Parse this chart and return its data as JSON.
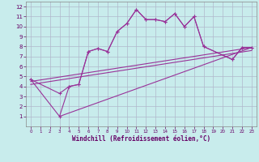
{
  "xlabel": "Windchill (Refroidissement éolien,°C)",
  "xlim": [
    -0.5,
    23.5
  ],
  "ylim": [
    0,
    12.5
  ],
  "xticks": [
    0,
    1,
    2,
    3,
    4,
    5,
    6,
    7,
    8,
    9,
    10,
    11,
    12,
    13,
    14,
    15,
    16,
    17,
    18,
    19,
    20,
    21,
    22,
    23
  ],
  "yticks": [
    1,
    2,
    3,
    4,
    5,
    6,
    7,
    8,
    9,
    10,
    11,
    12
  ],
  "bg_color": "#c8ecec",
  "grid_color": "#aaaacc",
  "line_color": "#993399",
  "zigzag_x": [
    0,
    3,
    4,
    5,
    6,
    7,
    8,
    9,
    10,
    11,
    12,
    13,
    14,
    15,
    16,
    17,
    18,
    21,
    22,
    23
  ],
  "zigzag_y": [
    4.7,
    3.3,
    4.0,
    4.2,
    7.5,
    7.8,
    7.5,
    9.5,
    10.3,
    11.7,
    10.7,
    10.7,
    10.5,
    11.3,
    10.0,
    11.0,
    8.0,
    6.7,
    7.9,
    7.9
  ],
  "upper_x": [
    0,
    3,
    4,
    5,
    6,
    7,
    8,
    9,
    10,
    11,
    12,
    13,
    14,
    15,
    16,
    17,
    18,
    21,
    22,
    23
  ],
  "upper_y": [
    4.7,
    1.0,
    4.0,
    4.2,
    7.5,
    7.8,
    7.5,
    9.5,
    10.3,
    11.7,
    10.7,
    10.7,
    10.5,
    11.3,
    10.0,
    11.0,
    8.0,
    6.7,
    7.9,
    7.9
  ],
  "line1_x": [
    0,
    23
  ],
  "line1_y": [
    4.5,
    7.9
  ],
  "line2_x": [
    0,
    23
  ],
  "line2_y": [
    4.2,
    7.6
  ],
  "line3_x": [
    3,
    23
  ],
  "line3_y": [
    1.0,
    7.9
  ]
}
